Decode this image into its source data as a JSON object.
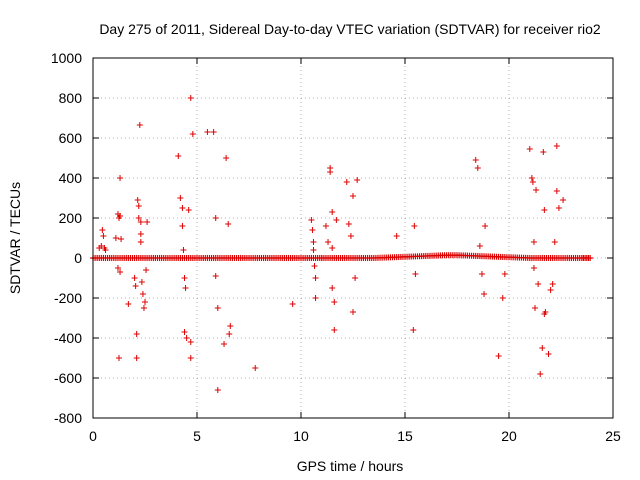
{
  "chart_data": {
    "type": "scatter",
    "title": "Day 275 of 2011, Sidereal Day-to-day VTEC variation (SDTVAR) for receiver rio2",
    "xlabel": "GPS time / hours",
    "ylabel": "SDTVAR / TECUs",
    "xlim": [
      0,
      25
    ],
    "ylim": [
      -800,
      1000
    ],
    "xticks": [
      0,
      5,
      10,
      15,
      20,
      25
    ],
    "yticks": [
      -800,
      -600,
      -400,
      -200,
      0,
      200,
      400,
      600,
      800,
      1000
    ],
    "xtick_labels": [
      "0",
      "5",
      "10",
      "15",
      "20",
      "25"
    ],
    "ytick_labels": [
      "-800",
      "-600",
      "-400",
      "-200",
      "0",
      "200",
      "400",
      "600",
      "800",
      "1000"
    ],
    "grid": true,
    "marker": "+",
    "color": "#dd0000",
    "baseline": {
      "name": "near-zero trace",
      "points": [
        [
          0.0,
          0
        ],
        [
          0.5,
          0
        ],
        [
          1.0,
          0
        ],
        [
          1.5,
          0
        ],
        [
          2.0,
          0
        ],
        [
          2.5,
          0
        ],
        [
          3.0,
          0
        ],
        [
          3.5,
          0
        ],
        [
          4.0,
          0
        ],
        [
          4.5,
          0
        ],
        [
          5.0,
          0
        ],
        [
          5.5,
          0
        ],
        [
          6.0,
          0
        ],
        [
          6.5,
          0
        ],
        [
          7.0,
          0
        ],
        [
          7.5,
          0
        ],
        [
          8.0,
          0
        ],
        [
          8.5,
          0
        ],
        [
          9.0,
          0
        ],
        [
          9.5,
          0
        ],
        [
          10.0,
          0
        ],
        [
          10.5,
          0
        ],
        [
          11.0,
          0
        ],
        [
          11.5,
          0
        ],
        [
          12.0,
          0
        ],
        [
          12.5,
          0
        ],
        [
          13.0,
          0
        ],
        [
          13.5,
          0
        ],
        [
          14.0,
          2
        ],
        [
          14.5,
          4
        ],
        [
          15.0,
          6
        ],
        [
          15.5,
          8
        ],
        [
          16.0,
          10
        ],
        [
          16.5,
          12
        ],
        [
          17.0,
          14
        ],
        [
          17.5,
          14
        ],
        [
          18.0,
          12
        ],
        [
          18.5,
          10
        ],
        [
          19.0,
          8
        ],
        [
          19.5,
          6
        ],
        [
          20.0,
          4
        ],
        [
          20.5,
          2
        ],
        [
          21.0,
          0
        ],
        [
          21.5,
          0
        ],
        [
          22.0,
          0
        ],
        [
          22.5,
          0
        ],
        [
          23.0,
          0
        ],
        [
          23.5,
          0
        ],
        [
          23.9,
          0
        ]
      ]
    },
    "series": [
      {
        "name": "outliers",
        "points": [
          [
            0.3,
            50
          ],
          [
            0.4,
            60
          ],
          [
            0.45,
            140
          ],
          [
            0.5,
            110
          ],
          [
            0.55,
            50
          ],
          [
            0.6,
            40
          ],
          [
            1.1,
            100
          ],
          [
            1.2,
            220
          ],
          [
            1.25,
            200
          ],
          [
            1.3,
            400
          ],
          [
            1.3,
            210
          ],
          [
            1.35,
            95
          ],
          [
            1.2,
            -50
          ],
          [
            1.3,
            -70
          ],
          [
            1.25,
            -500
          ],
          [
            1.7,
            -230
          ],
          [
            2.0,
            -100
          ],
          [
            2.05,
            -140
          ],
          [
            2.1,
            -380
          ],
          [
            2.1,
            -500
          ],
          [
            2.15,
            290
          ],
          [
            2.2,
            260
          ],
          [
            2.2,
            200
          ],
          [
            2.25,
            665
          ],
          [
            2.3,
            180
          ],
          [
            2.3,
            120
          ],
          [
            2.3,
            80
          ],
          [
            2.35,
            -120
          ],
          [
            2.4,
            -180
          ],
          [
            2.45,
            -250
          ],
          [
            2.5,
            -220
          ],
          [
            2.55,
            -60
          ],
          [
            2.6,
            180
          ],
          [
            4.1,
            510
          ],
          [
            4.2,
            300
          ],
          [
            4.3,
            250
          ],
          [
            4.3,
            160
          ],
          [
            4.35,
            40
          ],
          [
            4.4,
            -100
          ],
          [
            4.45,
            -150
          ],
          [
            4.5,
            -400
          ],
          [
            4.4,
            -370
          ],
          [
            4.6,
            240
          ],
          [
            4.7,
            800
          ],
          [
            4.8,
            620
          ],
          [
            4.7,
            -420
          ],
          [
            4.7,
            -500
          ],
          [
            5.5,
            630
          ],
          [
            5.8,
            630
          ],
          [
            5.9,
            200
          ],
          [
            5.9,
            -90
          ],
          [
            6.0,
            -250
          ],
          [
            6.0,
            -660
          ],
          [
            6.3,
            -430
          ],
          [
            6.4,
            500
          ],
          [
            6.5,
            170
          ],
          [
            6.6,
            -340
          ],
          [
            6.55,
            -380
          ],
          [
            7.8,
            -550
          ],
          [
            9.6,
            -230
          ],
          [
            10.5,
            190
          ],
          [
            10.55,
            140
          ],
          [
            10.6,
            80
          ],
          [
            10.6,
            40
          ],
          [
            10.65,
            -40
          ],
          [
            10.7,
            -100
          ],
          [
            10.7,
            -200
          ],
          [
            11.0,
            0
          ],
          [
            11.2,
            160
          ],
          [
            11.3,
            80
          ],
          [
            11.4,
            450
          ],
          [
            11.4,
            430
          ],
          [
            11.5,
            230
          ],
          [
            11.5,
            50
          ],
          [
            11.5,
            -150
          ],
          [
            11.6,
            -220
          ],
          [
            11.6,
            -360
          ],
          [
            11.7,
            190
          ],
          [
            12.2,
            380
          ],
          [
            12.3,
            170
          ],
          [
            12.4,
            110
          ],
          [
            12.5,
            -270
          ],
          [
            12.5,
            310
          ],
          [
            12.7,
            390
          ],
          [
            12.6,
            -100
          ],
          [
            14.6,
            110
          ],
          [
            15.4,
            -360
          ],
          [
            15.45,
            160
          ],
          [
            15.5,
            -80
          ],
          [
            18.4,
            490
          ],
          [
            18.5,
            450
          ],
          [
            18.6,
            60
          ],
          [
            18.7,
            -80
          ],
          [
            18.8,
            -180
          ],
          [
            18.85,
            160
          ],
          [
            19.5,
            -490
          ],
          [
            19.7,
            -200
          ],
          [
            19.8,
            -80
          ],
          [
            21.0,
            545
          ],
          [
            21.1,
            400
          ],
          [
            21.15,
            380
          ],
          [
            21.2,
            80
          ],
          [
            21.2,
            -50
          ],
          [
            21.25,
            -250
          ],
          [
            21.3,
            340
          ],
          [
            21.4,
            -130
          ],
          [
            21.5,
            -580
          ],
          [
            21.6,
            -450
          ],
          [
            21.65,
            530
          ],
          [
            21.7,
            240
          ],
          [
            21.7,
            -280
          ],
          [
            21.75,
            -270
          ],
          [
            21.9,
            -480
          ],
          [
            22.0,
            -160
          ],
          [
            22.1,
            -130
          ],
          [
            22.2,
            80
          ],
          [
            22.3,
            560
          ],
          [
            22.3,
            335
          ],
          [
            22.4,
            250
          ],
          [
            22.6,
            290
          ]
        ]
      }
    ]
  }
}
